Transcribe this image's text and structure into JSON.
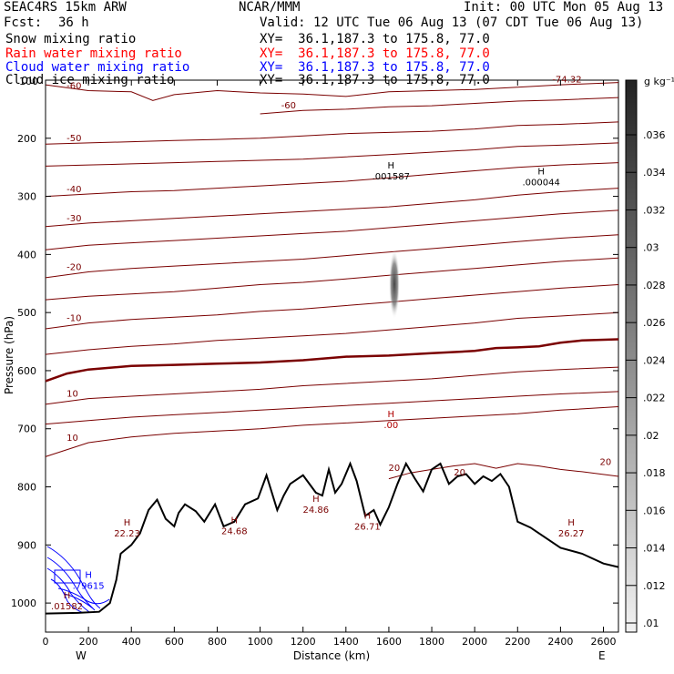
{
  "header": {
    "model": "SEAC4RS 15km ARW",
    "center": "NCAR/MMM",
    "init": "Init: 00 UTC Mon 05 Aug 13",
    "fcst_label": "Fcst:",
    "fcst_value": "36 h",
    "valid": "Valid: 12 UTC Tue 06 Aug 13 (07 CDT Tue 06 Aug 13)"
  },
  "fields": [
    {
      "name": "Snow mixing ratio",
      "xy": "XY=  36.1,187.3 to 175.8, 77.0",
      "color": "#000000"
    },
    {
      "name": "Rain water mixing ratio",
      "xy": "XY=  36.1,187.3 to 175.8, 77.0",
      "color": "#ff0000"
    },
    {
      "name": "Cloud water mixing ratio",
      "xy": "XY=  36.1,187.3 to 175.8, 77.0",
      "color": "#0000ff"
    },
    {
      "name": "Cloud ice mixing ratio",
      "xy": "XY=  36.1,187.3 to 175.8, 77.0",
      "color": "#000000"
    }
  ],
  "colors": {
    "temperature_contour": "#7a0000",
    "zero_isotherm": "#7a0000",
    "terrain": "#000000",
    "cloud_water": "#0000ff"
  },
  "chart_data": {
    "type": "cross-section",
    "xlabel": "Distance (km)",
    "ylabel": "Pressure (hPa)",
    "x_ticks": [
      0,
      200,
      400,
      600,
      800,
      1000,
      1200,
      1400,
      1600,
      1800,
      2000,
      2200,
      2400,
      2600
    ],
    "y_ticks": [
      200,
      300,
      400,
      500,
      600,
      700,
      800,
      900,
      1000
    ],
    "top_tick_label": "100",
    "xlim": [
      0,
      2670
    ],
    "ylim_pressure_top_bottom": [
      100,
      1050
    ],
    "endpoints": {
      "left": "W",
      "right": "E"
    },
    "colorbar": {
      "unit": "g kg⁻¹",
      "ticks": [
        ".036",
        ".034",
        ".032",
        ".03",
        ".028",
        ".026",
        ".024",
        ".022",
        ".02",
        ".018",
        ".016",
        ".014",
        ".012",
        ".01"
      ]
    },
    "isotherms": [
      {
        "label": "-60",
        "points": [
          [
            0,
            108
          ],
          [
            200,
            118
          ],
          [
            400,
            120
          ],
          [
            500,
            135
          ],
          [
            600,
            125
          ],
          [
            800,
            118
          ],
          [
            1000,
            122
          ],
          [
            1200,
            124
          ],
          [
            1400,
            128
          ],
          [
            1600,
            120
          ],
          [
            1800,
            118
          ],
          [
            2000,
            116
          ],
          [
            2200,
            112
          ],
          [
            2400,
            108
          ],
          [
            2670,
            104
          ]
        ]
      },
      {
        "label": "-60",
        "points": [
          [
            1000,
            158
          ],
          [
            1200,
            152
          ],
          [
            1400,
            150
          ],
          [
            1600,
            146
          ],
          [
            1800,
            144
          ],
          [
            2000,
            140
          ],
          [
            2200,
            136
          ],
          [
            2400,
            134
          ],
          [
            2670,
            130
          ]
        ]
      },
      {
        "label": "-50",
        "points": [
          [
            0,
            210
          ],
          [
            200,
            208
          ],
          [
            400,
            206
          ],
          [
            600,
            204
          ],
          [
            800,
            202
          ],
          [
            1000,
            200
          ],
          [
            1200,
            196
          ],
          [
            1400,
            192
          ],
          [
            1600,
            190
          ],
          [
            1800,
            188
          ],
          [
            2000,
            184
          ],
          [
            2200,
            178
          ],
          [
            2400,
            176
          ],
          [
            2670,
            172
          ]
        ]
      },
      {
        "label": "",
        "points": [
          [
            0,
            248
          ],
          [
            200,
            246
          ],
          [
            400,
            244
          ],
          [
            600,
            242
          ],
          [
            800,
            240
          ],
          [
            1000,
            238
          ],
          [
            1200,
            236
          ],
          [
            1400,
            232
          ],
          [
            1600,
            228
          ],
          [
            1800,
            224
          ],
          [
            2000,
            220
          ],
          [
            2200,
            214
          ],
          [
            2400,
            212
          ],
          [
            2670,
            208
          ]
        ]
      },
      {
        "label": "-40",
        "points": [
          [
            0,
            300
          ],
          [
            200,
            296
          ],
          [
            400,
            292
          ],
          [
            600,
            290
          ],
          [
            800,
            286
          ],
          [
            1000,
            282
          ],
          [
            1200,
            278
          ],
          [
            1400,
            274
          ],
          [
            1600,
            268
          ],
          [
            1800,
            262
          ],
          [
            2000,
            256
          ],
          [
            2200,
            250
          ],
          [
            2400,
            246
          ],
          [
            2670,
            242
          ]
        ]
      },
      {
        "label": "-30",
        "points": [
          [
            0,
            352
          ],
          [
            200,
            346
          ],
          [
            400,
            342
          ],
          [
            600,
            338
          ],
          [
            800,
            334
          ],
          [
            1000,
            330
          ],
          [
            1200,
            326
          ],
          [
            1400,
            322
          ],
          [
            1600,
            318
          ],
          [
            1800,
            312
          ],
          [
            2000,
            306
          ],
          [
            2200,
            298
          ],
          [
            2400,
            292
          ],
          [
            2670,
            286
          ]
        ]
      },
      {
        "label": "",
        "points": [
          [
            0,
            392
          ],
          [
            200,
            384
          ],
          [
            400,
            380
          ],
          [
            600,
            376
          ],
          [
            800,
            372
          ],
          [
            1000,
            368
          ],
          [
            1200,
            364
          ],
          [
            1400,
            360
          ],
          [
            1600,
            354
          ],
          [
            1800,
            348
          ],
          [
            2000,
            342
          ],
          [
            2200,
            336
          ],
          [
            2400,
            330
          ],
          [
            2670,
            324
          ]
        ]
      },
      {
        "label": "-20",
        "points": [
          [
            0,
            440
          ],
          [
            200,
            430
          ],
          [
            400,
            424
          ],
          [
            600,
            420
          ],
          [
            800,
            416
          ],
          [
            1000,
            412
          ],
          [
            1200,
            408
          ],
          [
            1400,
            402
          ],
          [
            1600,
            396
          ],
          [
            1800,
            390
          ],
          [
            2000,
            384
          ],
          [
            2200,
            378
          ],
          [
            2400,
            372
          ],
          [
            2670,
            366
          ]
        ]
      },
      {
        "label": "",
        "points": [
          [
            0,
            478
          ],
          [
            200,
            472
          ],
          [
            400,
            468
          ],
          [
            600,
            464
          ],
          [
            800,
            458
          ],
          [
            1000,
            452
          ],
          [
            1200,
            448
          ],
          [
            1400,
            442
          ],
          [
            1600,
            436
          ],
          [
            1800,
            430
          ],
          [
            2000,
            424
          ],
          [
            2200,
            418
          ],
          [
            2400,
            412
          ],
          [
            2670,
            406
          ]
        ]
      },
      {
        "label": "-10",
        "points": [
          [
            0,
            528
          ],
          [
            200,
            518
          ],
          [
            400,
            512
          ],
          [
            600,
            508
          ],
          [
            800,
            504
          ],
          [
            1000,
            498
          ],
          [
            1200,
            494
          ],
          [
            1400,
            488
          ],
          [
            1600,
            482
          ],
          [
            1800,
            476
          ],
          [
            2000,
            470
          ],
          [
            2200,
            464
          ],
          [
            2400,
            458
          ],
          [
            2670,
            452
          ]
        ]
      },
      {
        "label": "",
        "points": [
          [
            0,
            572
          ],
          [
            200,
            564
          ],
          [
            400,
            558
          ],
          [
            600,
            554
          ],
          [
            800,
            548
          ],
          [
            1000,
            544
          ],
          [
            1200,
            540
          ],
          [
            1400,
            536
          ],
          [
            1600,
            530
          ],
          [
            1800,
            524
          ],
          [
            2000,
            518
          ],
          [
            2200,
            510
          ],
          [
            2400,
            506
          ],
          [
            2670,
            500
          ]
        ]
      },
      {
        "label": "10",
        "points": [
          [
            0,
            658
          ],
          [
            200,
            648
          ],
          [
            400,
            644
          ],
          [
            600,
            640
          ],
          [
            800,
            636
          ],
          [
            1000,
            632
          ],
          [
            1200,
            626
          ],
          [
            1400,
            622
          ],
          [
            1600,
            618
          ],
          [
            1800,
            614
          ],
          [
            2000,
            608
          ],
          [
            2200,
            602
          ],
          [
            2400,
            598
          ],
          [
            2670,
            594
          ]
        ]
      },
      {
        "label": "",
        "points": [
          [
            0,
            692
          ],
          [
            200,
            686
          ],
          [
            400,
            680
          ],
          [
            600,
            676
          ],
          [
            800,
            672
          ],
          [
            1000,
            668
          ],
          [
            1200,
            664
          ],
          [
            1400,
            660
          ],
          [
            1600,
            656
          ],
          [
            1800,
            652
          ],
          [
            2000,
            648
          ],
          [
            2200,
            644
          ],
          [
            2400,
            640
          ],
          [
            2670,
            636
          ]
        ]
      },
      {
        "label": "10",
        "points": [
          [
            0,
            748
          ],
          [
            200,
            724
          ],
          [
            400,
            714
          ],
          [
            600,
            708
          ],
          [
            800,
            704
          ],
          [
            1000,
            700
          ],
          [
            1200,
            694
          ],
          [
            1400,
            690
          ],
          [
            1600,
            686
          ],
          [
            1800,
            682
          ],
          [
            2000,
            678
          ],
          [
            2200,
            674
          ],
          [
            2400,
            668
          ],
          [
            2670,
            662
          ]
        ]
      },
      {
        "label": "20",
        "points": [
          [
            1600,
            786
          ],
          [
            1700,
            776
          ],
          [
            1800,
            770
          ],
          [
            1900,
            764
          ],
          [
            2000,
            760
          ],
          [
            2100,
            768
          ],
          [
            2200,
            760
          ],
          [
            2300,
            764
          ],
          [
            2400,
            770
          ],
          [
            2500,
            774
          ],
          [
            2670,
            782
          ]
        ]
      }
    ],
    "zero_isotherm": [
      [
        0,
        618
      ],
      [
        100,
        605
      ],
      [
        200,
        598
      ],
      [
        400,
        592
      ],
      [
        600,
        590
      ],
      [
        800,
        588
      ],
      [
        1000,
        586
      ],
      [
        1200,
        582
      ],
      [
        1400,
        576
      ],
      [
        1600,
        574
      ],
      [
        1800,
        570
      ],
      [
        2000,
        566
      ],
      [
        2100,
        561
      ],
      [
        2200,
        560
      ],
      [
        2300,
        558
      ],
      [
        2400,
        552
      ],
      [
        2500,
        548
      ],
      [
        2670,
        546
      ]
    ],
    "terrain": [
      [
        0,
        1018
      ],
      [
        150,
        1017
      ],
      [
        250,
        1015
      ],
      [
        300,
        1000
      ],
      [
        330,
        960
      ],
      [
        350,
        915
      ],
      [
        400,
        900
      ],
      [
        440,
        880
      ],
      [
        480,
        840
      ],
      [
        520,
        822
      ],
      [
        560,
        855
      ],
      [
        600,
        868
      ],
      [
        620,
        845
      ],
      [
        650,
        830
      ],
      [
        700,
        842
      ],
      [
        740,
        860
      ],
      [
        790,
        830
      ],
      [
        830,
        868
      ],
      [
        880,
        860
      ],
      [
        930,
        830
      ],
      [
        990,
        820
      ],
      [
        1030,
        780
      ],
      [
        1080,
        840
      ],
      [
        1110,
        815
      ],
      [
        1140,
        795
      ],
      [
        1200,
        780
      ],
      [
        1260,
        810
      ],
      [
        1290,
        815
      ],
      [
        1320,
        770
      ],
      [
        1350,
        810
      ],
      [
        1380,
        795
      ],
      [
        1420,
        760
      ],
      [
        1450,
        790
      ],
      [
        1490,
        850
      ],
      [
        1530,
        840
      ],
      [
        1560,
        865
      ],
      [
        1600,
        835
      ],
      [
        1640,
        795
      ],
      [
        1680,
        760
      ],
      [
        1720,
        785
      ],
      [
        1760,
        808
      ],
      [
        1800,
        770
      ],
      [
        1840,
        760
      ],
      [
        1880,
        795
      ],
      [
        1920,
        782
      ],
      [
        1960,
        778
      ],
      [
        2000,
        795
      ],
      [
        2040,
        782
      ],
      [
        2080,
        790
      ],
      [
        2120,
        778
      ],
      [
        2160,
        800
      ],
      [
        2200,
        860
      ],
      [
        2260,
        870
      ],
      [
        2300,
        880
      ],
      [
        2400,
        905
      ],
      [
        2500,
        915
      ],
      [
        2600,
        932
      ],
      [
        2670,
        938
      ]
    ],
    "highs": [
      {
        "x": 1610,
        "p": 255,
        "h": "H",
        "value": ".001587",
        "color": "#000000"
      },
      {
        "x": 2310,
        "p": 265,
        "h": "H",
        "value": ".000044",
        "color": "#000000"
      },
      {
        "x": 1610,
        "p": 683,
        "h": "H",
        "value": ".00",
        "color": "#b00000"
      },
      {
        "x": 380,
        "p": 870,
        "h": "H",
        "value": "22.23",
        "color": "#7a0000"
      },
      {
        "x": 880,
        "p": 866,
        "h": "H",
        "value": "24.68",
        "color": "#7a0000"
      },
      {
        "x": 1260,
        "p": 829,
        "h": "H",
        "value": "24.86",
        "color": "#7a0000"
      },
      {
        "x": 1500,
        "p": 858,
        "h": "H",
        "value": "26.71",
        "color": "#7a0000"
      },
      {
        "x": 2450,
        "p": 870,
        "h": "H",
        "value": "26.27",
        "color": "#7a0000"
      },
      {
        "x": 200,
        "p": 960,
        "h": "H",
        "value": ".79615",
        "color": "#0000ff"
      },
      {
        "x": 100,
        "p": 995,
        "h": "H",
        "value": ".01582",
        "color": "#7a0000"
      }
    ],
    "inline_labels": [
      {
        "x": 1930,
        "p": 780,
        "text": "20"
      },
      {
        "x": 2610,
        "p": 762,
        "text": "20"
      },
      {
        "x": 2430,
        "p": 104,
        "text": "-74.32"
      }
    ]
  }
}
